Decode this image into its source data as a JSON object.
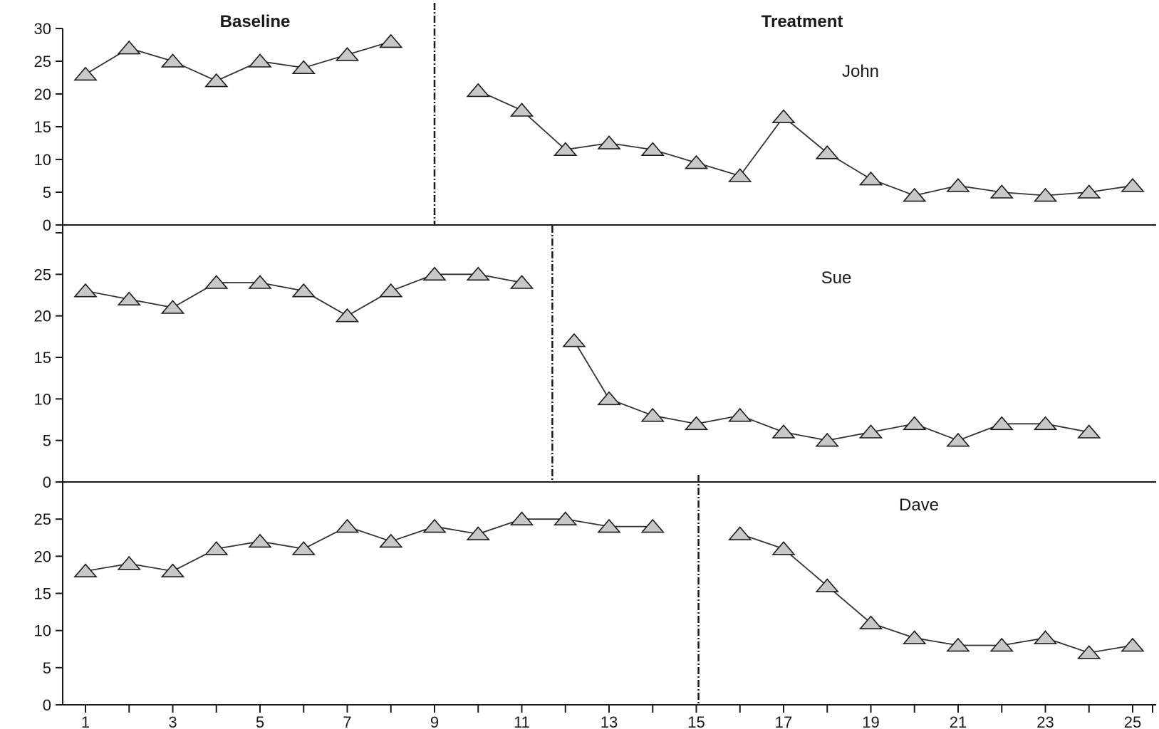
{
  "chart_data": {
    "type": "line",
    "phase_labels": [
      "Baseline",
      "Treatment"
    ],
    "x": [
      1,
      25
    ],
    "x_tick_labels": [
      "1",
      "3",
      "5",
      "7",
      "9",
      "11",
      "13",
      "15",
      "17",
      "19",
      "21",
      "23",
      "25"
    ],
    "panels": [
      {
        "name": "John",
        "ylim": [
          0,
          30
        ],
        "y_ticks": [
          "0",
          "5",
          "10",
          "15",
          "20",
          "25",
          "30"
        ],
        "phase_change_after": 9,
        "baseline": {
          "x": [
            1,
            2,
            3,
            4,
            5,
            6,
            7,
            8
          ],
          "values": [
            23,
            27,
            25,
            22,
            25,
            24,
            26,
            28
          ]
        },
        "treatment": {
          "x": [
            10,
            11,
            12,
            13,
            14,
            15,
            16,
            17,
            18,
            19,
            20,
            21,
            22,
            23,
            24,
            25
          ],
          "values": [
            20.5,
            17.5,
            11.5,
            12.5,
            11.5,
            9.5,
            7.5,
            16.5,
            11,
            7,
            4.5,
            6,
            5,
            4.5,
            5,
            6
          ]
        }
      },
      {
        "name": "Sue",
        "ylim": [
          0,
          30
        ],
        "y_ticks": [
          "0",
          "5",
          "10",
          "15",
          "20",
          "25"
        ],
        "phase_change_after": 11.7,
        "baseline": {
          "x": [
            1,
            2,
            3,
            4,
            5,
            6,
            7,
            8,
            9,
            10,
            11
          ],
          "values": [
            23,
            22,
            21,
            24,
            24,
            23,
            20,
            23,
            25,
            25,
            24
          ]
        },
        "treatment": {
          "x": [
            12.2,
            13,
            14,
            15,
            16,
            17,
            18,
            19,
            20,
            21,
            22,
            23,
            24
          ],
          "values": [
            17,
            10,
            8,
            7,
            8,
            6,
            5,
            6,
            7,
            5,
            7,
            7,
            6
          ]
        }
      },
      {
        "name": "Dave",
        "ylim": [
          0,
          30
        ],
        "y_ticks": [
          "0",
          "5",
          "10",
          "15",
          "20",
          "25"
        ],
        "phase_change_after": 15.05,
        "baseline": {
          "x": [
            1,
            2,
            3,
            4,
            5,
            6,
            7,
            8,
            9,
            10,
            11,
            12,
            13,
            14
          ],
          "values": [
            18,
            19,
            18,
            21,
            22,
            21,
            24,
            22,
            24,
            23,
            25,
            25,
            24,
            24
          ]
        },
        "treatment": {
          "x": [
            16,
            17,
            18,
            19,
            20,
            21,
            22,
            23,
            24,
            25
          ],
          "values": [
            23,
            21,
            16,
            11,
            9,
            8,
            8,
            9,
            7,
            8
          ]
        }
      }
    ]
  }
}
